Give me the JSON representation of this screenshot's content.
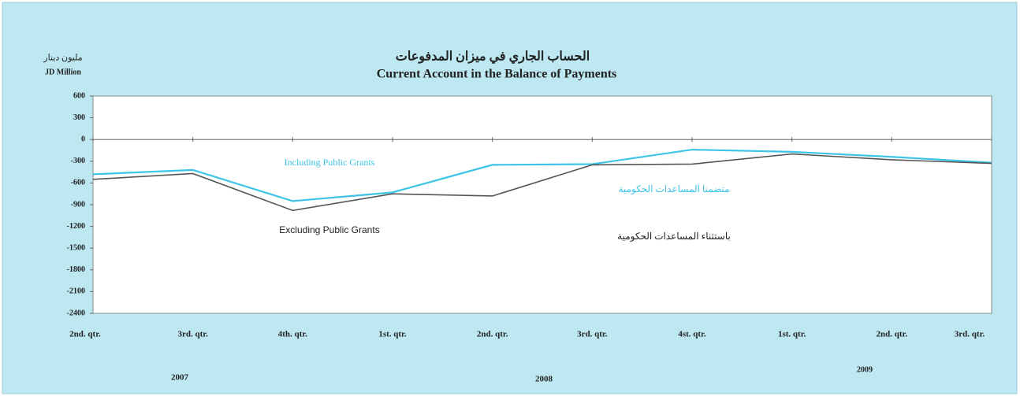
{
  "chart_data": {
    "type": "line",
    "title_ar": "الحساب الجاري في ميزان المدفوعات",
    "title": "Current Account in the Balance of Payments",
    "y_label_ar": "مليون دينار",
    "y_label": "JD Million",
    "categories": [
      "2nd. qtr.",
      "3rd. qtr.",
      "4th. qtr.",
      "1st. qtr.",
      "2nd. qtr.",
      "3rd. qtr.",
      "4st. qtr.",
      "1st. qtr.",
      "2nd. qtr.",
      "3rd. qtr."
    ],
    "years": [
      "2007",
      "2008",
      "2009"
    ],
    "series": [
      {
        "name": "Including Public Grants",
        "name_ar": "متضمنا المساعدات الحكومية",
        "color": "#3cc4e8",
        "values": [
          -480,
          -420,
          -850,
          -730,
          -350,
          -340,
          -140,
          -170,
          -240,
          -320
        ]
      },
      {
        "name": "Excluding Public Grants",
        "name_ar": "باستثناء المساعدات الحكومية",
        "color": "#555555",
        "values": [
          -550,
          -470,
          -980,
          -750,
          -780,
          -350,
          -340,
          -200,
          -280,
          -330
        ]
      }
    ],
    "ylim": [
      -2400,
      600
    ],
    "yticks": [
      600,
      300,
      0,
      -300,
      -600,
      -900,
      -1200,
      -1500,
      -1800,
      -2100,
      -2400
    ]
  }
}
